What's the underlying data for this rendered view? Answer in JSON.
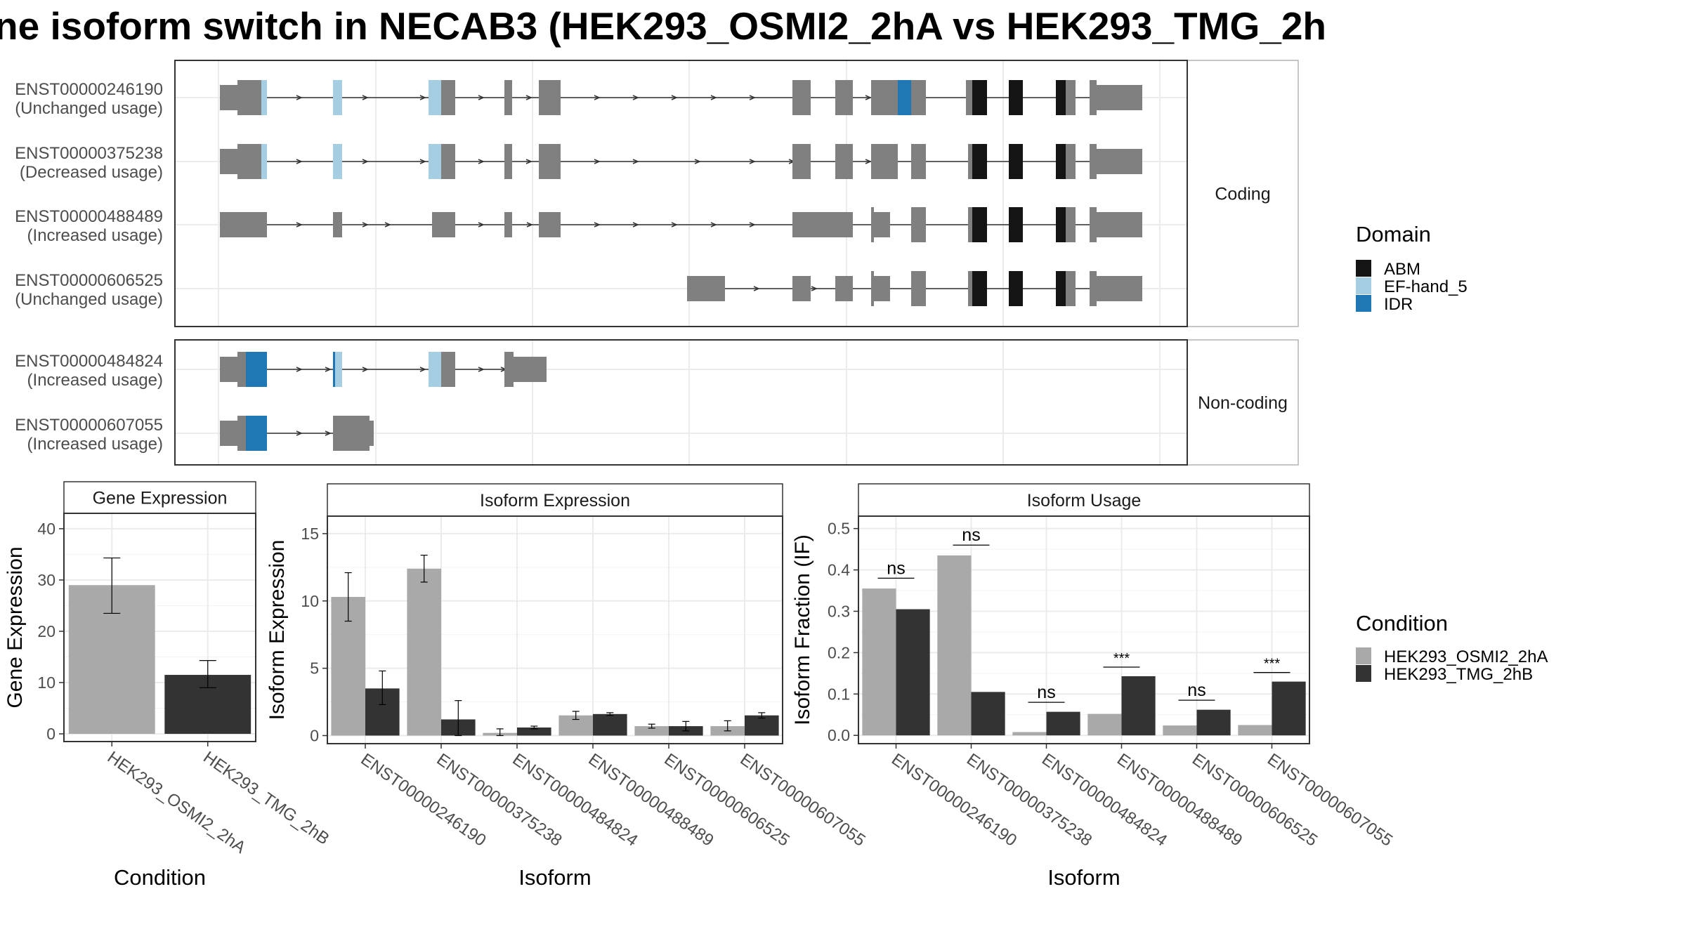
{
  "title": "ne isoform switch in NECAB3 (HEK293_OSMI2_2hA vs HEK293_TMG_2h",
  "colors": {
    "exon": "#808080",
    "ABM": "#141414",
    "EF-hand_5": "#a6cee3",
    "IDR": "#1f78b4",
    "cond1": "#a9a9a9",
    "cond2": "#333333",
    "grid": "#ebebeb",
    "strip": "#ffffff",
    "panel_border": "#333333"
  },
  "transcripts": {
    "coding_label": "Coding",
    "noncoding_label": "Non-coding",
    "coding": [
      {
        "id": "ENST00000246190",
        "status": "(Unchanged usage)"
      },
      {
        "id": "ENST00000375238",
        "status": "(Decreased usage)"
      },
      {
        "id": "ENST00000488489",
        "status": "(Increased usage)"
      },
      {
        "id": "ENST00000606525",
        "status": "(Unchanged usage)"
      }
    ],
    "noncoding": [
      {
        "id": "ENST00000484824",
        "status": "(Increased usage)"
      },
      {
        "id": "ENST00000607055",
        "status": "(Increased usage)"
      }
    ]
  },
  "legend_domain": {
    "title": "Domain",
    "items": [
      {
        "label": "ABM",
        "color": "#141414"
      },
      {
        "label": "EF-hand_5",
        "color": "#a6cee3"
      },
      {
        "label": "IDR",
        "color": "#1f78b4"
      }
    ]
  },
  "legend_condition": {
    "title": "Condition",
    "items": [
      {
        "label": "HEK293_OSMI2_2hA",
        "color": "#a9a9a9"
      },
      {
        "label": "HEK293_TMG_2hB",
        "color": "#333333"
      }
    ]
  },
  "chart_data": [
    {
      "type": "bar",
      "title": "Gene Expression",
      "xlabel": "Condition",
      "ylabel": "Gene Expression",
      "ylim": [
        -1.5,
        43
      ],
      "yticks": [
        0,
        10,
        20,
        30,
        40
      ],
      "categories": [
        "HEK293_OSMI2_2hA",
        "HEK293_TMG_2hB"
      ],
      "values": [
        29,
        11.5
      ],
      "error_low": [
        23.5,
        9
      ],
      "error_high": [
        34.3,
        14.3
      ]
    },
    {
      "type": "bar",
      "title": "Isoform Expression",
      "xlabel": "Isoform",
      "ylabel": "Isoform Expression",
      "ylim": [
        -0.6,
        16.3
      ],
      "yticks": [
        0,
        5,
        10,
        15
      ],
      "categories": [
        "ENST00000246190",
        "ENST00000375238",
        "ENST00000484824",
        "ENST00000488489",
        "ENST00000606525",
        "ENST00000607055"
      ],
      "series": [
        {
          "name": "HEK293_OSMI2_2hA",
          "values": [
            10.3,
            12.4,
            0.2,
            1.5,
            0.7,
            0.7
          ],
          "error_low": [
            8.5,
            11.4,
            0.0,
            1.2,
            0.55,
            0.35
          ],
          "error_high": [
            12.1,
            13.4,
            0.5,
            1.8,
            0.85,
            1.1
          ]
        },
        {
          "name": "HEK293_TMG_2hB",
          "values": [
            3.5,
            1.2,
            0.6,
            1.6,
            0.7,
            1.5
          ],
          "error_low": [
            2.3,
            0.0,
            0.5,
            1.5,
            0.35,
            1.3
          ],
          "error_high": [
            4.8,
            2.6,
            0.7,
            1.7,
            1.05,
            1.7
          ]
        }
      ]
    },
    {
      "type": "bar",
      "title": "Isoform Usage",
      "xlabel": "Isoform",
      "ylabel": "Isoform Fraction (IF)",
      "ylim": [
        -0.02,
        0.53
      ],
      "yticks": [
        0.0,
        0.1,
        0.2,
        0.3,
        0.4,
        0.5
      ],
      "ytick_labels": [
        "0.0",
        "0.1",
        "0.2",
        "0.3",
        "0.4",
        "0.5"
      ],
      "categories": [
        "ENST00000246190",
        "ENST00000375238",
        "ENST00000484824",
        "ENST00000488489",
        "ENST00000606525",
        "ENST00000607055"
      ],
      "series": [
        {
          "name": "HEK293_OSMI2_2hA",
          "values": [
            0.355,
            0.435,
            0.008,
            0.052,
            0.024,
            0.025
          ]
        },
        {
          "name": "HEK293_TMG_2hB",
          "values": [
            0.305,
            0.105,
            0.057,
            0.143,
            0.062,
            0.13
          ]
        }
      ],
      "significance": [
        "ns",
        "ns",
        "ns",
        "***",
        "ns",
        "***"
      ],
      "sig_level": [
        0.38,
        0.46,
        0.08,
        0.165,
        0.085,
        0.152
      ]
    }
  ]
}
